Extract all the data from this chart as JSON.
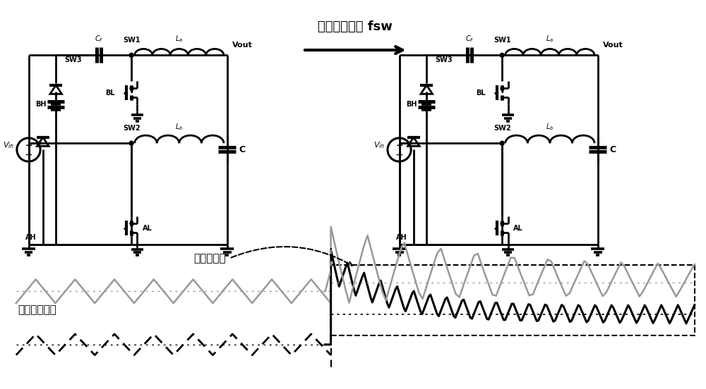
{
  "title_text": "提高开关频率 fsw",
  "label_smaller_inductor": "更小的电感",
  "label_unidirectional": "单向电感电流",
  "bg_color": "#ffffff",
  "black": "#000000",
  "gray": "#999999",
  "lw": 2.0
}
